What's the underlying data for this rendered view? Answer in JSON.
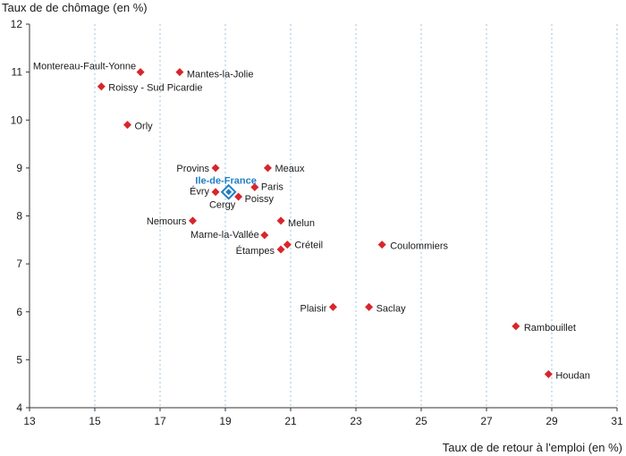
{
  "chart_data": {
    "type": "scatter",
    "title": "",
    "ylabel": "Taux de de chômage (en %)",
    "xlabel": "Taux de de retour à l'emploi (en %)",
    "xlim": [
      13,
      31
    ],
    "ylim": [
      4,
      12
    ],
    "x_ticks": [
      "13",
      "15",
      "17",
      "19",
      "21",
      "23",
      "25",
      "27",
      "29",
      "31"
    ],
    "y_ticks": [
      "4",
      "5",
      "6",
      "7",
      "8",
      "9",
      "10",
      "11",
      "12"
    ],
    "grid": "vertical",
    "colors": {
      "marker": "#d7262b",
      "highlight": "#1f7fc4",
      "grid": "#7fb6dd",
      "axis": "#333333"
    },
    "points": [
      {
        "name": "Montereau-Fault-Yonne",
        "x": 16.4,
        "y": 11.0
      },
      {
        "name": "Mantes-la-Jolie",
        "x": 17.6,
        "y": 11.0
      },
      {
        "name": "Roissy - Sud Picardie",
        "x": 15.2,
        "y": 10.7
      },
      {
        "name": "Orly",
        "x": 16.0,
        "y": 9.9
      },
      {
        "name": "Provins",
        "x": 18.7,
        "y": 9.0
      },
      {
        "name": "Meaux",
        "x": 20.3,
        "y": 9.0
      },
      {
        "name": "Paris",
        "x": 19.9,
        "y": 8.6
      },
      {
        "name": "Évry",
        "x": 18.7,
        "y": 8.5
      },
      {
        "name": "Cergy",
        "x": 19.1,
        "y": 8.5
      },
      {
        "name": "Poissy",
        "x": 19.4,
        "y": 8.4
      },
      {
        "name": "Nemours",
        "x": 18.0,
        "y": 7.9
      },
      {
        "name": "Melun",
        "x": 20.7,
        "y": 7.9
      },
      {
        "name": "Marne-la-Vallée",
        "x": 20.2,
        "y": 7.6
      },
      {
        "name": "Créteil",
        "x": 20.9,
        "y": 7.4
      },
      {
        "name": "Étampes",
        "x": 20.7,
        "y": 7.3
      },
      {
        "name": "Coulommiers",
        "x": 23.8,
        "y": 7.4
      },
      {
        "name": "Plaisir",
        "x": 22.3,
        "y": 6.1
      },
      {
        "name": "Saclay",
        "x": 23.4,
        "y": 6.1
      },
      {
        "name": "Rambouillet",
        "x": 27.9,
        "y": 5.7
      },
      {
        "name": "Houdan",
        "x": 28.9,
        "y": 4.7
      }
    ],
    "highlight": {
      "name": "Ile-de-France",
      "x": 19.1,
      "y": 8.5
    }
  }
}
